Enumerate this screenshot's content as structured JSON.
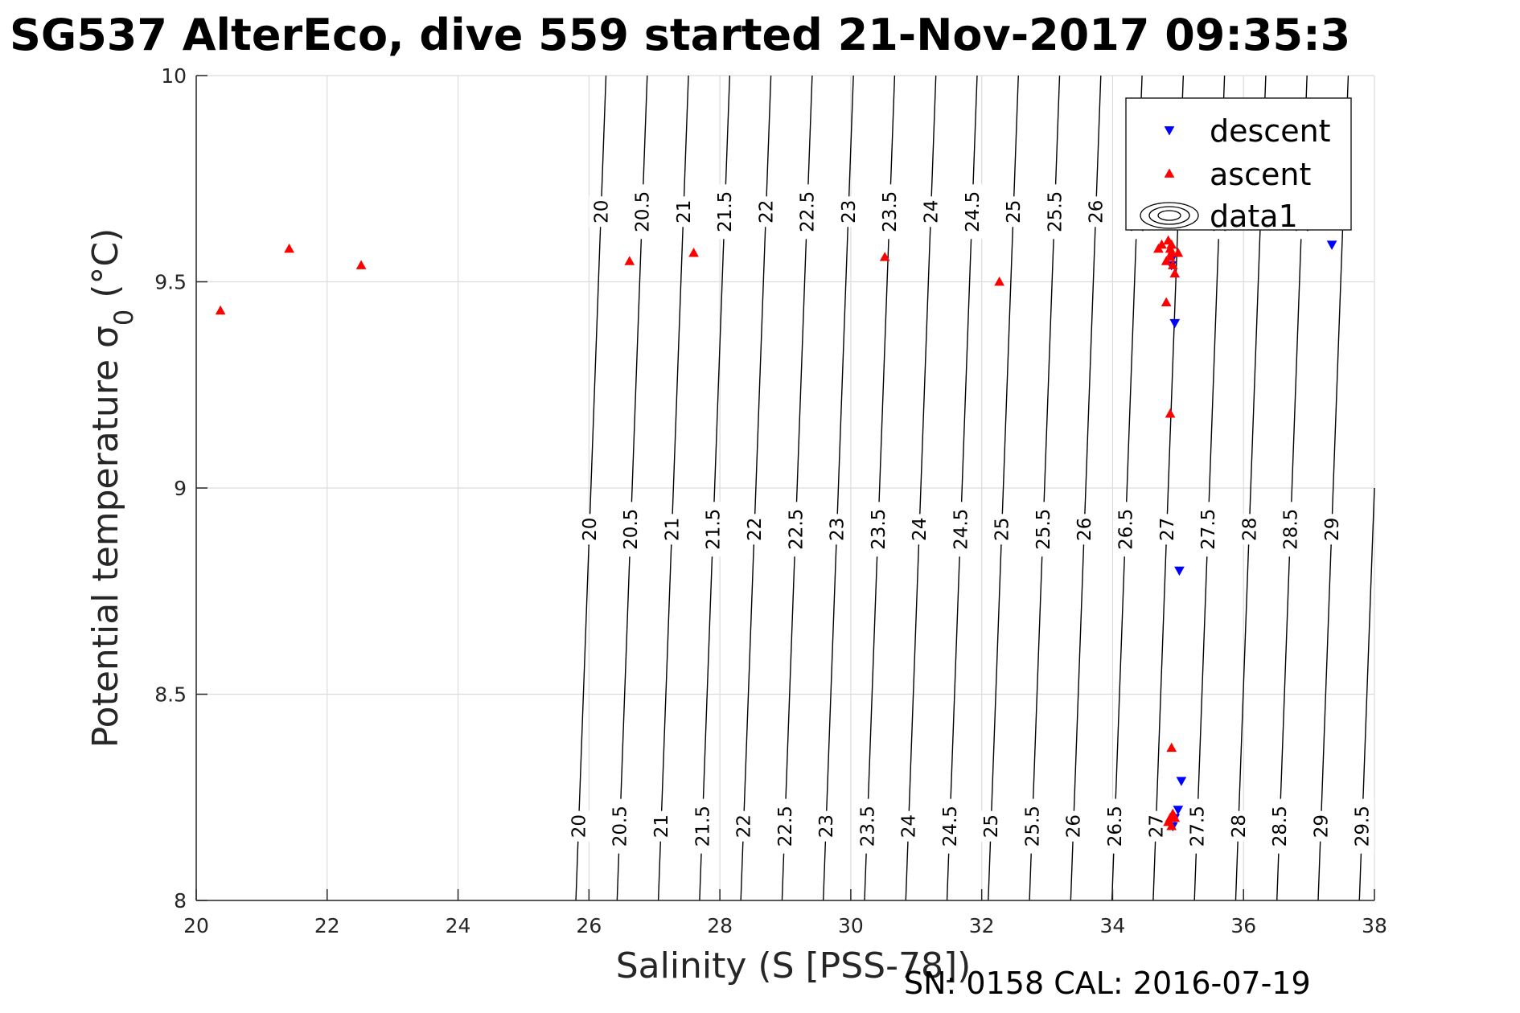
{
  "chart_data": {
    "type": "scatter",
    "title": "SG537 AlterEco, dive 559 started 21-Nov-2017 09:35:3",
    "xlabel": "Salinity (S [PSS-78])",
    "ylabel": "Potential temperature σ",
    "ylabel_subscript": "0",
    "ylabel_unit": " (°C)",
    "xlim": [
      20,
      38
    ],
    "ylim": [
      8,
      10
    ],
    "xticks": [
      "20",
      "22",
      "24",
      "26",
      "28",
      "30",
      "32",
      "34",
      "36",
      "38"
    ],
    "yticks": [
      "8",
      "8.5",
      "9",
      "9.5",
      "10"
    ],
    "grid": true,
    "legend_position": "top-right",
    "footer": "SN: 0158  CAL: 2016-07-19",
    "series": [
      {
        "name": "descent",
        "marker": "triangle-down",
        "color": "#0000ff",
        "x": [
          34.9,
          34.92,
          34.95,
          35.02,
          35.05,
          35.0,
          34.95,
          34.92,
          37.35
        ],
        "y": [
          9.54,
          9.56,
          9.4,
          8.8,
          8.29,
          8.22,
          8.2,
          8.18,
          9.59
        ]
      },
      {
        "name": "ascent",
        "marker": "triangle-up",
        "color": "#ff0000",
        "x": [
          20.37,
          21.42,
          22.52,
          26.62,
          27.6,
          30.52,
          32.27,
          34.7,
          34.75,
          34.82,
          34.85,
          34.88,
          34.9,
          34.92,
          34.95,
          35.0,
          34.88,
          34.9,
          34.82,
          34.88,
          34.9,
          34.88,
          34.92,
          34.85,
          34.9,
          34.95
        ],
        "y": [
          9.43,
          9.58,
          9.54,
          9.55,
          9.57,
          9.56,
          9.5,
          9.58,
          9.59,
          9.55,
          9.6,
          9.58,
          9.57,
          9.54,
          9.52,
          9.57,
          9.56,
          9.59,
          9.45,
          9.18,
          8.37,
          8.2,
          8.21,
          8.19,
          8.18,
          8.2
        ]
      },
      {
        "name": "data1",
        "marker": "contour",
        "color": "#000000",
        "contour_levels": [
          "20",
          "20.5",
          "21",
          "21.5",
          "22",
          "22.5",
          "23",
          "23.5",
          "24",
          "24.5",
          "25",
          "25.5",
          "26",
          "26.5",
          "27",
          "27.5",
          "28",
          "28.5",
          "29",
          "29.5"
        ]
      }
    ]
  }
}
